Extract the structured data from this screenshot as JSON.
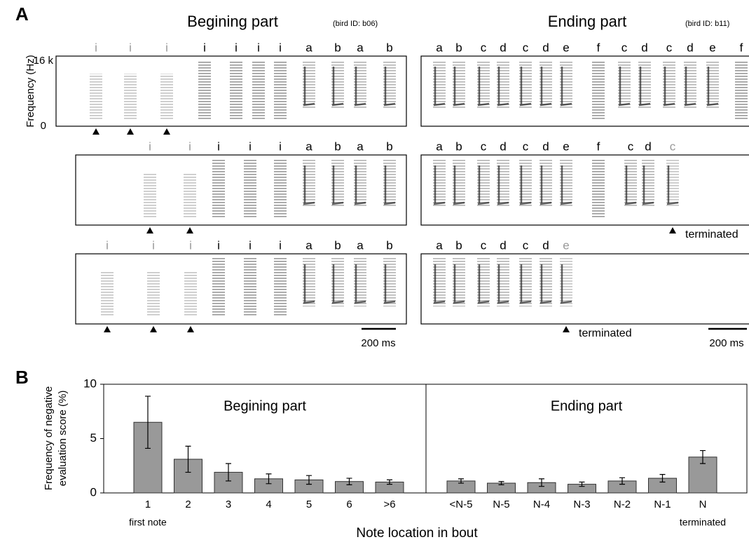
{
  "panel_a": {
    "label": "A",
    "begin_title": "Begining part",
    "begin_bird": "(bird ID: b06)",
    "end_title": "Ending part",
    "end_bird": "(bird ID: b11)",
    "freq_top": "16 k",
    "freq_bottom": "0",
    "freq_label": "Frequency (Hz)",
    "terminated": "terminated",
    "scale_bar": "200 ms",
    "rows": [
      {
        "begin": {
          "notes": [
            "i",
            "i",
            "i",
            "i",
            "i",
            "i",
            "i",
            "a",
            "b",
            "a",
            "b"
          ],
          "marked": [
            0,
            1,
            2
          ]
        },
        "end": {
          "notes": [
            "a",
            "b",
            "c",
            "d",
            "c",
            "d",
            "e",
            "f",
            "c",
            "d",
            "c",
            "d",
            "e",
            "f"
          ],
          "marked": []
        }
      },
      {
        "begin": {
          "notes": [
            "i",
            "i",
            "i",
            "i",
            "i",
            "a",
            "b",
            "a",
            "b"
          ],
          "marked": [
            0,
            1
          ]
        },
        "end": {
          "notes": [
            "a",
            "b",
            "c",
            "d",
            "c",
            "d",
            "e",
            "f",
            "c",
            "d",
            "c"
          ],
          "marked": [
            10
          ]
        }
      },
      {
        "begin": {
          "notes": [
            "i",
            "i",
            "i",
            "i",
            "i",
            "i",
            "a",
            "b",
            "a",
            "b"
          ],
          "marked": [
            0,
            1,
            2
          ]
        },
        "end": {
          "notes": [
            "a",
            "b",
            "c",
            "d",
            "c",
            "d",
            "e"
          ],
          "marked": [
            6
          ]
        }
      }
    ]
  },
  "panel_b_label": "B",
  "chart_data": {
    "type": "bar",
    "xlabel": "Note location in bout",
    "ylabel": [
      "Frequency of negative",
      "evaluation score (%)"
    ],
    "categories": [
      "1",
      "2",
      "3",
      "4",
      "5",
      "6",
      ">6",
      "<N-5",
      "N-5",
      "N-4",
      "N-3",
      "N-2",
      "N-1",
      "N"
    ],
    "values": [
      6.5,
      3.1,
      1.9,
      1.3,
      1.2,
      1.05,
      1.0,
      1.1,
      0.9,
      0.95,
      0.8,
      1.1,
      1.35,
      3.3
    ],
    "errors": [
      2.4,
      1.2,
      0.8,
      0.45,
      0.4,
      0.3,
      0.2,
      0.2,
      0.15,
      0.35,
      0.2,
      0.3,
      0.35,
      0.6
    ],
    "groups": [
      {
        "label": "Begining part",
        "count": 7
      },
      {
        "label": "Ending part",
        "count": 7
      }
    ],
    "annotations": [
      {
        "category": 0,
        "text": "first note"
      },
      {
        "category": 13,
        "text": "terminated"
      }
    ],
    "color": "#999999",
    "ylim": [
      0,
      10
    ],
    "yticks": [
      0,
      5,
      10
    ]
  }
}
